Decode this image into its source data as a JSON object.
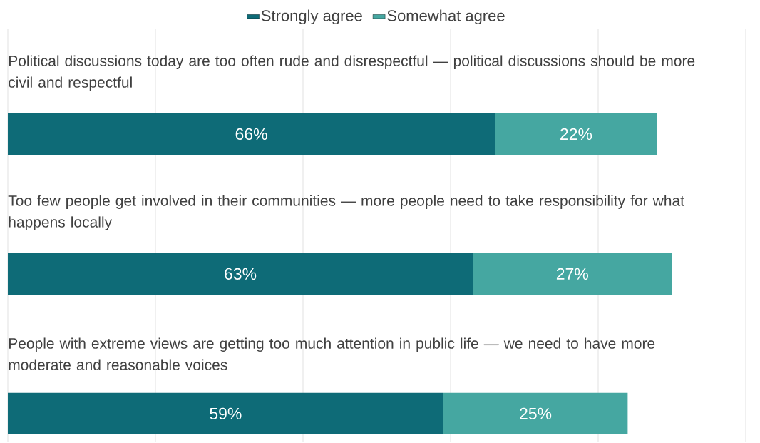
{
  "chart_data": {
    "type": "bar",
    "orientation": "horizontal",
    "stacked": true,
    "categories": [
      "Political discussions today are too often rude and disrespectful — political discussions should be more civil and respectful",
      "Too few people get involved in their communities — more people need to take responsibility for what happens locally",
      "People with extreme views are getting too much attention in public life — we need to have more moderate and reasonable voices"
    ],
    "series": [
      {
        "name": "Strongly agree",
        "color": "#0e6b77",
        "values": [
          66,
          63,
          59
        ],
        "value_labels": [
          "66%",
          "63%",
          "59%"
        ]
      },
      {
        "name": "Somewhat agree",
        "color": "#45a7a1",
        "values": [
          22,
          27,
          25
        ],
        "value_labels": [
          "22%",
          "27%",
          "25%"
        ]
      }
    ],
    "xlim": [
      0,
      100
    ],
    "xticks": [
      {
        "value": 0,
        "label": null
      },
      {
        "value": 20,
        "label": null
      },
      {
        "value": 40,
        "label": null
      },
      {
        "value": 60,
        "label": null
      },
      {
        "value": 80,
        "label": null
      },
      {
        "value": 100,
        "label": null
      }
    ],
    "grid": "x",
    "legend": "top"
  }
}
